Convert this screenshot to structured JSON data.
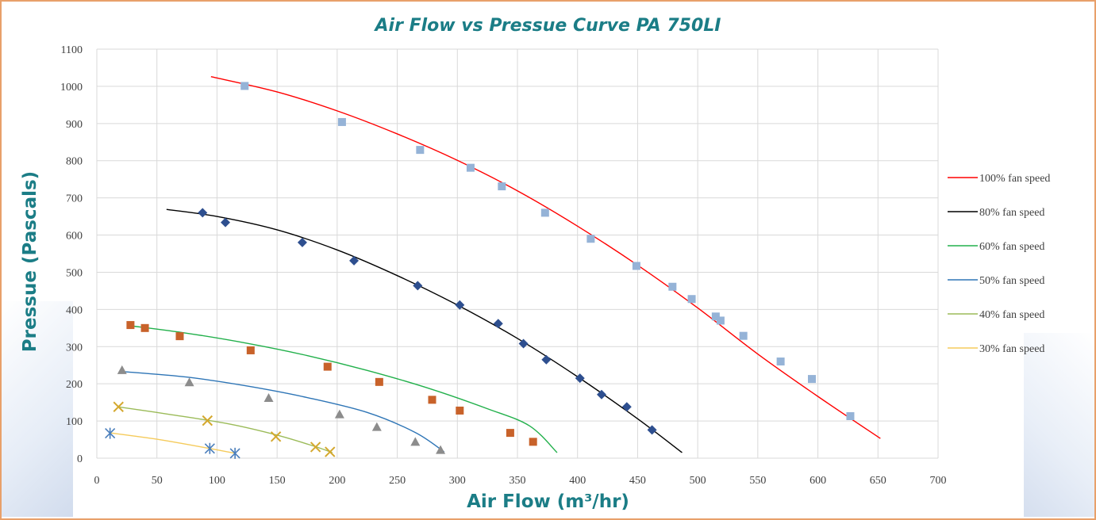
{
  "chart_data": {
    "type": "scatter",
    "title": "Air Flow vs Pressue Curve PA 750LI",
    "xlabel": "Air Flow (m³/hr)",
    "ylabel": "Pressue (Pascals)",
    "xlim": [
      0,
      700
    ],
    "ylim": [
      0,
      1100
    ],
    "x_ticks": [
      "0",
      "50",
      "100",
      "150",
      "200",
      "250",
      "300",
      "350",
      "400",
      "450",
      "500",
      "550",
      "600",
      "650",
      "700"
    ],
    "y_ticks": [
      "0",
      "100",
      "200",
      "300",
      "400",
      "500",
      "600",
      "700",
      "800",
      "900",
      "1000",
      "1100"
    ],
    "grid": true,
    "legend_position": "right",
    "series": [
      {
        "name": "100% fan speed",
        "line_color": "#ff0000",
        "marker": "square",
        "marker_color": "#95b3d7",
        "points": [
          [
            123,
            1001
          ],
          [
            204,
            904
          ],
          [
            269,
            829
          ],
          [
            311,
            781
          ],
          [
            337,
            731
          ],
          [
            373,
            660
          ],
          [
            411,
            590
          ],
          [
            449,
            517
          ],
          [
            479,
            461
          ],
          [
            495,
            428
          ],
          [
            515,
            381
          ],
          [
            519,
            370
          ],
          [
            538,
            329
          ],
          [
            569,
            260
          ],
          [
            595,
            213
          ],
          [
            627,
            113
          ]
        ],
        "fit": [
          [
            95,
            1026
          ],
          [
            150,
            985
          ],
          [
            200,
            934
          ],
          [
            250,
            872
          ],
          [
            300,
            801
          ],
          [
            350,
            719
          ],
          [
            400,
            624
          ],
          [
            450,
            519
          ],
          [
            500,
            404
          ],
          [
            550,
            280
          ],
          [
            600,
            166
          ],
          [
            652,
            53
          ]
        ]
      },
      {
        "name": "80% fan speed",
        "line_color": "#000000",
        "marker": "diamond",
        "marker_color": "#2e4f8f",
        "points": [
          [
            88,
            660
          ],
          [
            107,
            634
          ],
          [
            171,
            580
          ],
          [
            214,
            531
          ],
          [
            267,
            464
          ],
          [
            302,
            412
          ],
          [
            334,
            362
          ],
          [
            355,
            308
          ],
          [
            374,
            265
          ],
          [
            402,
            215
          ],
          [
            420,
            171
          ],
          [
            441,
            138
          ],
          [
            462,
            76
          ]
        ],
        "fit": [
          [
            58,
            669
          ],
          [
            100,
            650
          ],
          [
            150,
            614
          ],
          [
            200,
            560
          ],
          [
            250,
            491
          ],
          [
            300,
            412
          ],
          [
            350,
            322
          ],
          [
            400,
            219
          ],
          [
            450,
            106
          ],
          [
            487,
            15
          ]
        ]
      },
      {
        "name": "60% fan speed",
        "line_color": "#22b04b",
        "marker": "square",
        "marker_color": "#c8622a",
        "points": [
          [
            28,
            358
          ],
          [
            40,
            350
          ],
          [
            69,
            328
          ],
          [
            128,
            290
          ],
          [
            192,
            246
          ],
          [
            235,
            205
          ],
          [
            279,
            157
          ],
          [
            302,
            128
          ],
          [
            344,
            68
          ],
          [
            363,
            44
          ]
        ],
        "fit": [
          [
            28,
            356
          ],
          [
            75,
            336
          ],
          [
            125,
            309
          ],
          [
            175,
            276
          ],
          [
            225,
            236
          ],
          [
            275,
            189
          ],
          [
            325,
            133
          ],
          [
            360,
            87
          ],
          [
            383,
            15
          ]
        ]
      },
      {
        "name": "50% fan speed",
        "line_color": "#2e75b6",
        "marker": "triangle",
        "marker_color": "#8c8c8c",
        "points": [
          [
            21,
            237
          ],
          [
            77,
            204
          ],
          [
            143,
            162
          ],
          [
            202,
            118
          ],
          [
            233,
            84
          ],
          [
            265,
            44
          ],
          [
            286,
            22
          ]
        ],
        "fit": [
          [
            21,
            233
          ],
          [
            75,
            218
          ],
          [
            125,
            194
          ],
          [
            175,
            163
          ],
          [
            225,
            123
          ],
          [
            265,
            69
          ],
          [
            289,
            17
          ]
        ]
      },
      {
        "name": "40% fan speed",
        "line_color": "#9bbb59",
        "marker": "x",
        "marker_color": "#d4a82e",
        "points": [
          [
            18,
            138
          ],
          [
            92,
            101
          ],
          [
            149,
            58
          ],
          [
            182,
            30
          ],
          [
            194,
            17
          ]
        ],
        "fit": [
          [
            18,
            138
          ],
          [
            60,
            118
          ],
          [
            110,
            92
          ],
          [
            150,
            62
          ],
          [
            180,
            33
          ],
          [
            196,
            15
          ]
        ]
      },
      {
        "name": "30% fan speed",
        "line_color": "#f5cb5c",
        "marker": "asterisk",
        "marker_color": "#4a7ebb",
        "points": [
          [
            11,
            67
          ],
          [
            94,
            26
          ],
          [
            115,
            13
          ]
        ],
        "fit": [
          [
            11,
            68
          ],
          [
            50,
            51
          ],
          [
            94,
            26
          ],
          [
            115,
            13
          ]
        ]
      }
    ]
  }
}
